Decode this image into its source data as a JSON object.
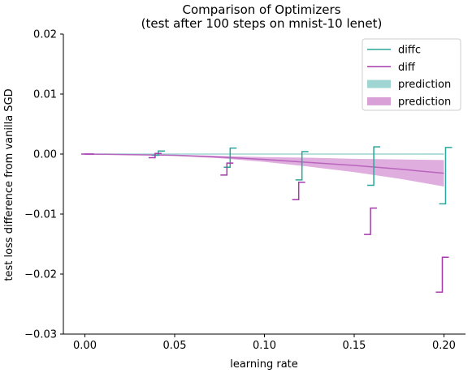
{
  "chart_data": {
    "type": "line",
    "title": "Comparison of Optimizers",
    "subtitle": "(test after 100 steps on mnist-10 lenet)",
    "xlabel": "learning rate",
    "ylabel": "test loss difference from vanilla SGD",
    "xlim": [
      -0.012,
      0.212
    ],
    "ylim": [
      -0.03,
      0.02
    ],
    "x_ticks": [
      0.0,
      0.05,
      0.1,
      0.15,
      0.2
    ],
    "x_tick_labels": [
      "0.00",
      "0.05",
      "0.10",
      "0.15",
      "0.20"
    ],
    "y_ticks": [
      -0.03,
      -0.02,
      -0.01,
      0.0,
      0.01,
      0.02
    ],
    "y_tick_labels": [
      "−0.03",
      "−0.02",
      "−0.01",
      "0.00",
      "0.01",
      "0.02"
    ],
    "grid": false,
    "legend_position": "top-right",
    "legend": [
      {
        "label": "diffc",
        "kind": "line",
        "color": "#2ca59a"
      },
      {
        "label": "diff",
        "kind": "line",
        "color": "#a63aad"
      },
      {
        "label": "prediction",
        "kind": "patch",
        "color": "#9fd6d3"
      },
      {
        "label": "prediction",
        "kind": "patch",
        "color": "#d9a0d8"
      }
    ],
    "series": [
      {
        "name": "diffc",
        "color": "#2ca59a",
        "measurements": [
          {
            "x": 0.04,
            "low": -0.0002,
            "high": 0.0005
          },
          {
            "x": 0.08,
            "low": -0.0022,
            "high": 0.001
          },
          {
            "x": 0.12,
            "low": -0.0043,
            "high": 0.0004
          },
          {
            "x": 0.16,
            "low": -0.0052,
            "high": 0.0012
          },
          {
            "x": 0.2,
            "low": -0.0083,
            "high": 0.0011
          }
        ],
        "prediction": {
          "x": [
            0.0,
            0.2
          ],
          "mean": [
            0.0,
            0.0
          ],
          "lower": [
            0.0,
            -0.0001
          ],
          "upper": [
            0.0,
            0.0001
          ]
        }
      },
      {
        "name": "diff",
        "color": "#a63aad",
        "measurements": [
          {
            "x": 0.04,
            "low": -0.0006,
            "high": 0.0001
          },
          {
            "x": 0.08,
            "low": -0.0035,
            "high": -0.0015
          },
          {
            "x": 0.12,
            "low": -0.0076,
            "high": -0.0047
          },
          {
            "x": 0.16,
            "low": -0.0134,
            "high": -0.009
          },
          {
            "x": 0.2,
            "low": -0.023,
            "high": -0.0172
          }
        ],
        "prediction": {
          "x": [
            0.0,
            0.025,
            0.05,
            0.075,
            0.1,
            0.125,
            0.15,
            0.175,
            0.2
          ],
          "mean": [
            0.0,
            -0.0001,
            -0.0002,
            -0.0005,
            -0.0009,
            -0.0014,
            -0.0019,
            -0.0025,
            -0.0032
          ],
          "lower": [
            0.0,
            -0.0001,
            -0.0003,
            -0.0007,
            -0.0013,
            -0.0021,
            -0.003,
            -0.0041,
            -0.0054
          ],
          "upper": [
            0.0,
            0.0,
            -0.0001,
            -0.0003,
            -0.0005,
            -0.0006,
            -0.0008,
            -0.0009,
            -0.001
          ]
        }
      }
    ]
  }
}
